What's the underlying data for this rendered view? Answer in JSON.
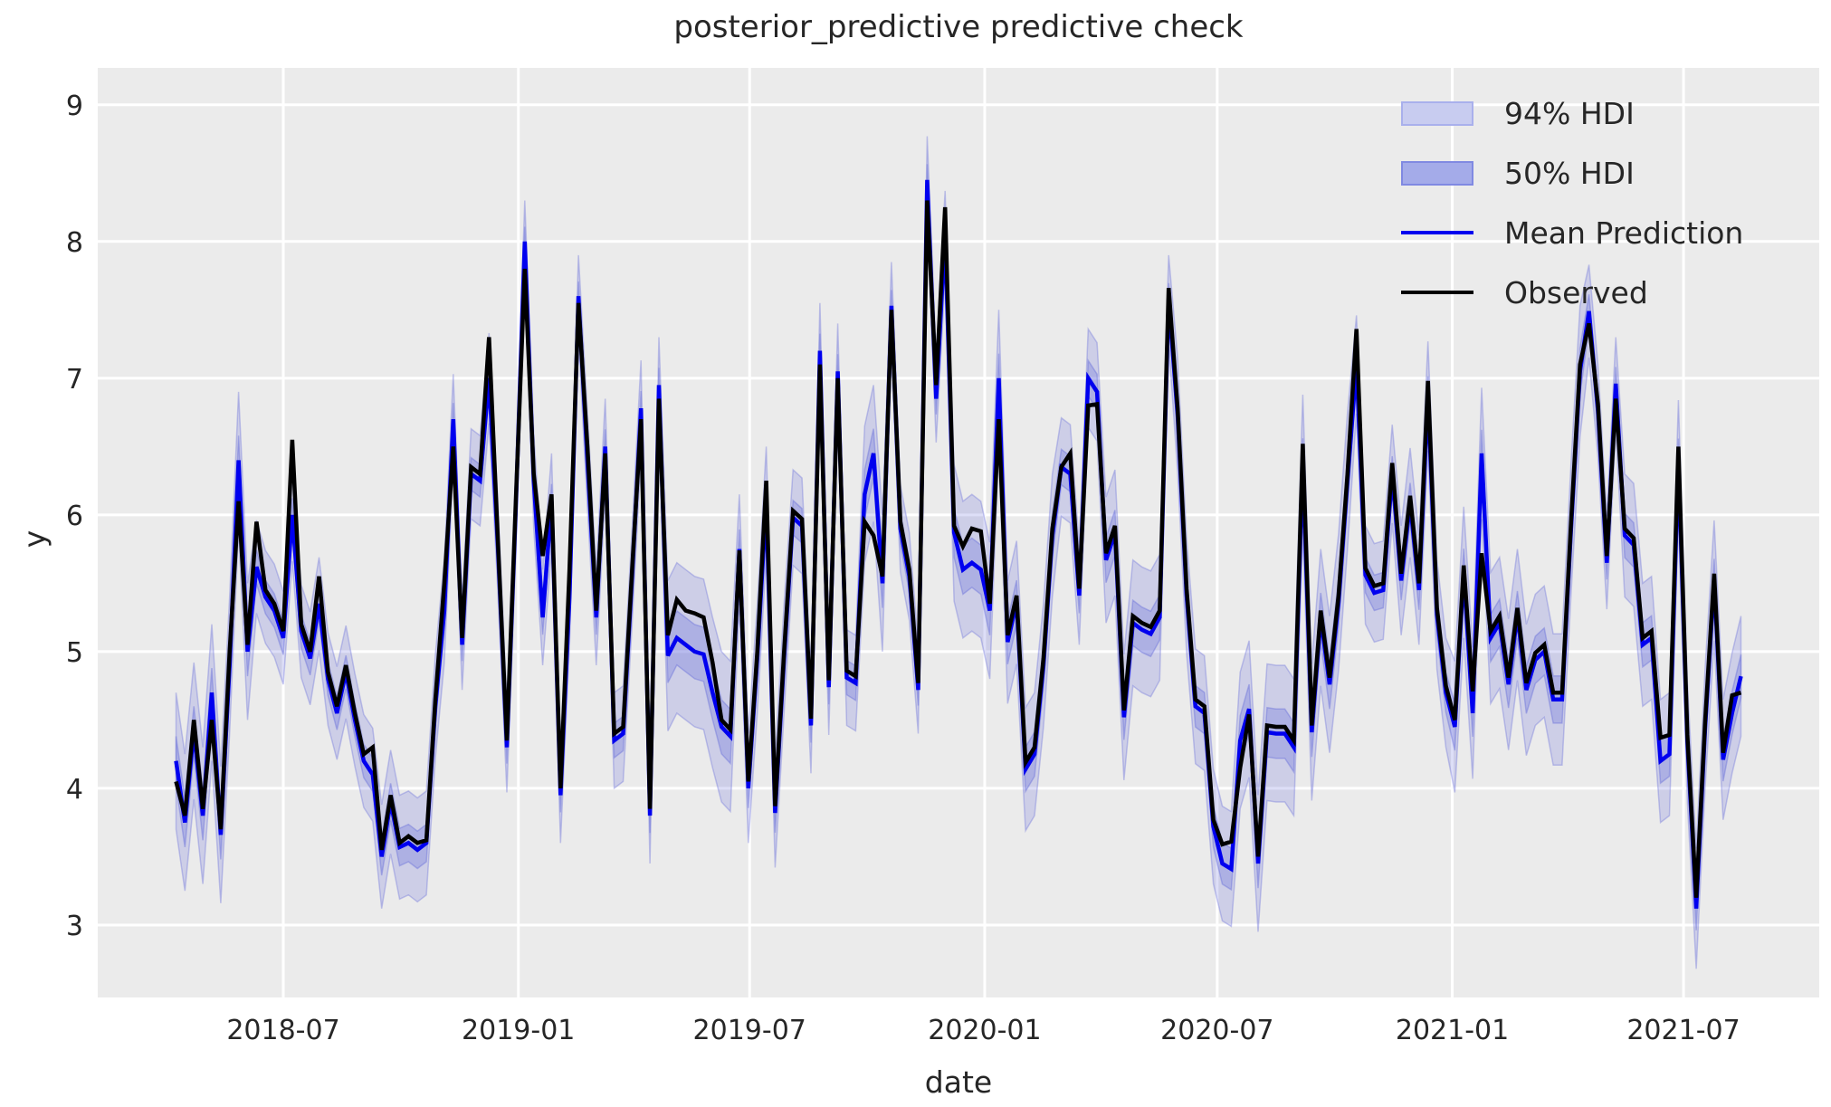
{
  "title": "posterior_predictive predictive check",
  "colors": {
    "figure_background": "#ffffff",
    "axes_background": "#ebebeb",
    "gridline": "#ffffff",
    "text": "#262626",
    "observed_line": "#000000",
    "mean_line": "#0000ef",
    "hdi_base_rgb": "99,107,218",
    "hdi94_legend_fill": "#c8ccf0",
    "hdi94_legend_border": "#a9b0ec",
    "hdi50_legend_fill": "#a4abe9",
    "hdi50_legend_border": "#8089e2"
  },
  "legend": {
    "items": [
      {
        "label": "94% HDI",
        "type": "patch"
      },
      {
        "label": "50% HDI",
        "type": "patch"
      },
      {
        "label": "Mean Prediction",
        "type": "line"
      },
      {
        "label": "Observed",
        "type": "line"
      }
    ],
    "position": "upper right"
  },
  "chart_data": {
    "type": "line",
    "title": "posterior_predictive predictive check",
    "xlabel": "date",
    "ylabel": "y",
    "grid": true,
    "legend_position": "upper right",
    "start_date": "2018-04-08",
    "freq_days": 7,
    "ylim": [
      2.47,
      9.27
    ],
    "y_ticks": [
      3,
      4,
      5,
      6,
      7,
      8,
      9
    ],
    "x_ticks": [
      {
        "label": "2018-07",
        "date": "2018-07-01"
      },
      {
        "label": "2019-01",
        "date": "2019-01-01"
      },
      {
        "label": "2019-07",
        "date": "2019-07-01"
      },
      {
        "label": "2020-01",
        "date": "2020-01-01"
      },
      {
        "label": "2020-07",
        "date": "2020-07-01"
      },
      {
        "label": "2021-01",
        "date": "2021-01-01"
      },
      {
        "label": "2021-07",
        "date": "2021-07-01"
      }
    ],
    "series": [
      {
        "name": "Mean Prediction",
        "color": "#0000ef",
        "values": [
          4.2,
          3.75,
          4.42,
          3.8,
          4.7,
          3.66,
          4.9,
          6.4,
          5.0,
          5.62,
          5.4,
          5.3,
          5.1,
          6.0,
          5.15,
          4.95,
          5.35,
          4.8,
          4.55,
          4.85,
          4.5,
          4.2,
          4.1,
          3.5,
          3.9,
          3.57,
          3.6,
          3.55,
          3.6,
          4.6,
          5.3,
          6.7,
          5.05,
          6.3,
          6.25,
          7.0,
          5.75,
          4.3,
          6.05,
          8.0,
          6.25,
          5.25,
          6.1,
          3.95,
          5.4,
          7.6,
          6.4,
          5.25,
          6.5,
          4.35,
          4.4,
          5.55,
          6.78,
          3.8,
          6.95,
          4.97,
          5.1,
          5.05,
          5.0,
          4.98,
          4.7,
          4.45,
          4.38,
          5.75,
          4.0,
          4.95,
          6.1,
          3.82,
          4.95,
          5.98,
          5.92,
          4.46,
          7.2,
          4.74,
          7.05,
          4.81,
          4.77,
          6.15,
          6.45,
          5.5,
          7.53,
          5.9,
          5.55,
          4.72,
          8.45,
          6.85,
          8.05,
          5.87,
          5.6,
          5.65,
          5.6,
          5.3,
          7.0,
          5.07,
          5.36,
          4.14,
          4.25,
          4.9,
          5.85,
          6.35,
          6.3,
          5.41,
          7.0,
          6.9,
          5.67,
          5.87,
          4.52,
          5.21,
          5.16,
          5.13,
          5.25,
          7.58,
          6.73,
          5.41,
          4.6,
          4.55,
          3.72,
          3.45,
          3.41,
          4.35,
          4.58,
          3.45,
          4.41,
          4.4,
          4.4,
          4.3,
          6.38,
          4.41,
          5.25,
          4.76,
          5.36,
          6.25,
          7.1,
          5.56,
          5.43,
          5.45,
          6.3,
          5.52,
          6.09,
          5.45,
          6.87,
          5.27,
          4.7,
          4.45,
          5.58,
          4.55,
          6.45,
          5.1,
          5.21,
          4.76,
          5.27,
          4.72,
          4.94,
          5.0,
          4.65,
          4.65,
          5.9,
          7.05,
          7.49,
          6.76,
          5.65,
          6.96,
          5.85,
          5.78,
          5.05,
          5.1,
          4.2,
          4.25,
          6.4,
          4.34,
          3.12,
          4.45,
          5.52,
          4.21,
          4.55,
          4.82
        ]
      },
      {
        "name": "Observed",
        "color": "#000000",
        "values": [
          4.05,
          3.8,
          4.5,
          3.85,
          4.5,
          3.7,
          5.0,
          6.1,
          5.05,
          5.95,
          5.45,
          5.35,
          5.15,
          6.55,
          5.2,
          5.0,
          5.55,
          4.85,
          4.6,
          4.9,
          4.55,
          4.25,
          4.3,
          3.55,
          3.95,
          3.6,
          3.65,
          3.6,
          3.62,
          4.65,
          5.5,
          6.5,
          5.1,
          6.35,
          6.3,
          7.3,
          5.8,
          4.35,
          6.1,
          7.8,
          6.3,
          5.7,
          6.15,
          4.0,
          5.6,
          7.55,
          6.5,
          5.3,
          6.45,
          4.4,
          4.45,
          5.6,
          6.7,
          3.85,
          6.85,
          5.12,
          5.38,
          5.3,
          5.28,
          5.25,
          4.92,
          4.5,
          4.43,
          5.74,
          4.05,
          5.0,
          6.25,
          3.87,
          5.0,
          6.03,
          5.97,
          4.51,
          7.1,
          4.79,
          7.0,
          4.86,
          4.82,
          5.95,
          5.85,
          5.55,
          7.5,
          5.95,
          5.6,
          4.77,
          8.3,
          6.95,
          8.25,
          5.92,
          5.77,
          5.9,
          5.88,
          5.35,
          6.7,
          5.12,
          5.41,
          4.19,
          4.3,
          4.95,
          5.9,
          6.35,
          6.45,
          5.46,
          6.8,
          6.81,
          5.72,
          5.92,
          4.57,
          5.26,
          5.21,
          5.18,
          5.3,
          7.66,
          6.78,
          5.46,
          4.65,
          4.6,
          3.77,
          3.59,
          3.61,
          4.15,
          4.54,
          3.5,
          4.46,
          4.45,
          4.45,
          4.35,
          6.52,
          4.46,
          5.3,
          4.81,
          5.41,
          6.3,
          7.36,
          5.61,
          5.48,
          5.5,
          6.38,
          5.57,
          6.14,
          5.5,
          6.98,
          5.32,
          4.75,
          4.5,
          5.63,
          4.71,
          5.72,
          5.15,
          5.26,
          4.81,
          5.32,
          4.77,
          4.99,
          5.05,
          4.7,
          4.7,
          5.95,
          7.1,
          7.4,
          6.81,
          5.7,
          6.85,
          5.9,
          5.83,
          5.1,
          5.15,
          4.37,
          4.39,
          6.5,
          4.39,
          3.2,
          4.5,
          5.57,
          4.26,
          4.68,
          4.7
        ]
      }
    ],
    "bands": {
      "hdi94_label": "94% HDI",
      "hdi50_label": "50% HDI",
      "hdi50_to_94_ratio": 0.36,
      "hdi94_halfwidth": [
        0.5,
        0.5,
        0.5,
        0.5,
        0.5,
        0.5,
        0.5,
        0.5,
        0.5,
        0.34,
        0.34,
        0.34,
        0.34,
        0.34,
        0.34,
        0.34,
        0.34,
        0.34,
        0.34,
        0.34,
        0.34,
        0.34,
        0.34,
        0.38,
        0.38,
        0.38,
        0.38,
        0.38,
        0.38,
        0.38,
        0.38,
        0.33,
        0.33,
        0.33,
        0.33,
        0.33,
        0.33,
        0.33,
        0.33,
        0.3,
        0.35,
        0.35,
        0.35,
        0.35,
        0.35,
        0.3,
        0.35,
        0.35,
        0.35,
        0.35,
        0.35,
        0.35,
        0.35,
        0.35,
        0.35,
        0.55,
        0.55,
        0.55,
        0.55,
        0.55,
        0.55,
        0.55,
        0.55,
        0.4,
        0.4,
        0.4,
        0.4,
        0.4,
        0.4,
        0.35,
        0.35,
        0.35,
        0.35,
        0.35,
        0.35,
        0.35,
        0.35,
        0.5,
        0.5,
        0.5,
        0.32,
        0.32,
        0.32,
        0.32,
        0.32,
        0.32,
        0.32,
        0.5,
        0.5,
        0.5,
        0.5,
        0.5,
        0.5,
        0.45,
        0.45,
        0.45,
        0.45,
        0.45,
        0.45,
        0.36,
        0.36,
        0.36,
        0.36,
        0.36,
        0.46,
        0.46,
        0.46,
        0.46,
        0.46,
        0.46,
        0.46,
        0.32,
        0.42,
        0.42,
        0.42,
        0.42,
        0.42,
        0.42,
        0.42,
        0.5,
        0.5,
        0.5,
        0.5,
        0.5,
        0.5,
        0.5,
        0.5,
        0.5,
        0.5,
        0.5,
        0.5,
        0.5,
        0.36,
        0.36,
        0.36,
        0.36,
        0.36,
        0.4,
        0.4,
        0.4,
        0.4,
        0.4,
        0.4,
        0.48,
        0.48,
        0.48,
        0.48,
        0.48,
        0.48,
        0.48,
        0.48,
        0.48,
        0.48,
        0.48,
        0.48,
        0.48,
        0.48,
        0.48,
        0.34,
        0.34,
        0.34,
        0.34,
        0.45,
        0.45,
        0.45,
        0.45,
        0.45,
        0.45,
        0.44,
        0.44,
        0.44,
        0.44,
        0.44,
        0.44,
        0.44,
        0.44
      ]
    }
  }
}
